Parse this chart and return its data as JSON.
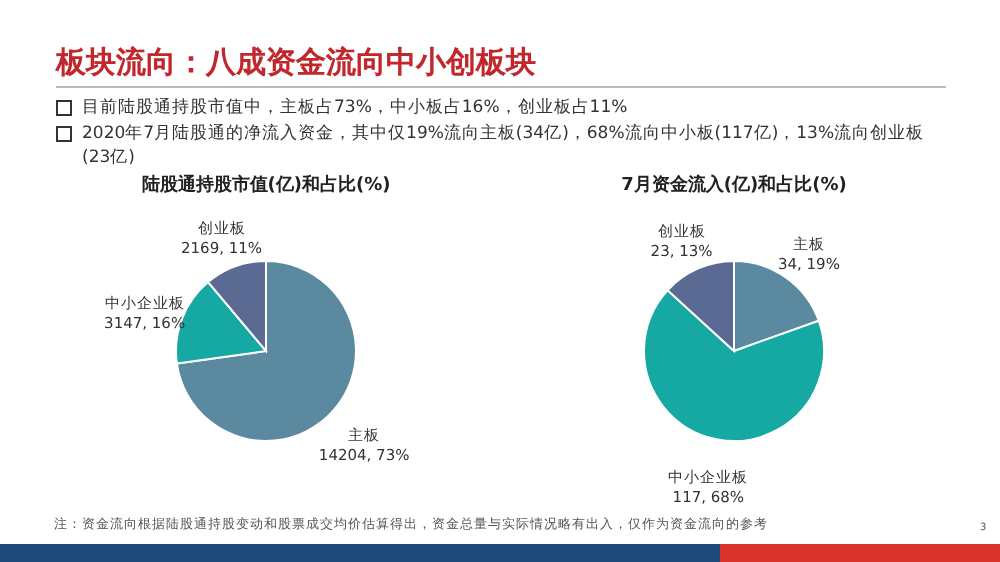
{
  "chart_data": [
    {
      "type": "other",
      "title": "板块流向：八成资金流向中小创板块",
      "annotations": [
        "目前陆股通持股市值中，主板占73%，中小板占16%，创业板占11%",
        "2020年7月陆股通的净流入资金，其中仅19%流向主板(34亿)，68%流向中小板(117亿)，13%流向创业板(23亿)",
        "注：资金流向根据陆股通持股变动和股票成交均价估算得出，资金总量与实际情况略有出入，仅作为资金流向的参考",
        "3"
      ]
    },
    {
      "type": "pie",
      "title": "陆股通持股市值(亿)和占比(%)",
      "categories": [
        "主板",
        "中小企业板",
        "创业板"
      ],
      "values": [
        14204,
        3147,
        2169
      ],
      "colors": [
        "#5b8aa0",
        "#16a8a3",
        "#5b6a92"
      ],
      "value_labels": [
        "14204, 73%",
        "3147, 16%",
        "2169, 11%"
      ]
    },
    {
      "type": "pie",
      "title": "7月资金流入(亿)和占比(%)",
      "categories": [
        "主板",
        "中小企业板",
        "创业板"
      ],
      "values": [
        34,
        117,
        23
      ],
      "colors": [
        "#5b8aa0",
        "#16a8a3",
        "#5b6a92"
      ],
      "value_labels": [
        "34, 19%",
        "117, 68%",
        "23, 13%"
      ]
    }
  ]
}
